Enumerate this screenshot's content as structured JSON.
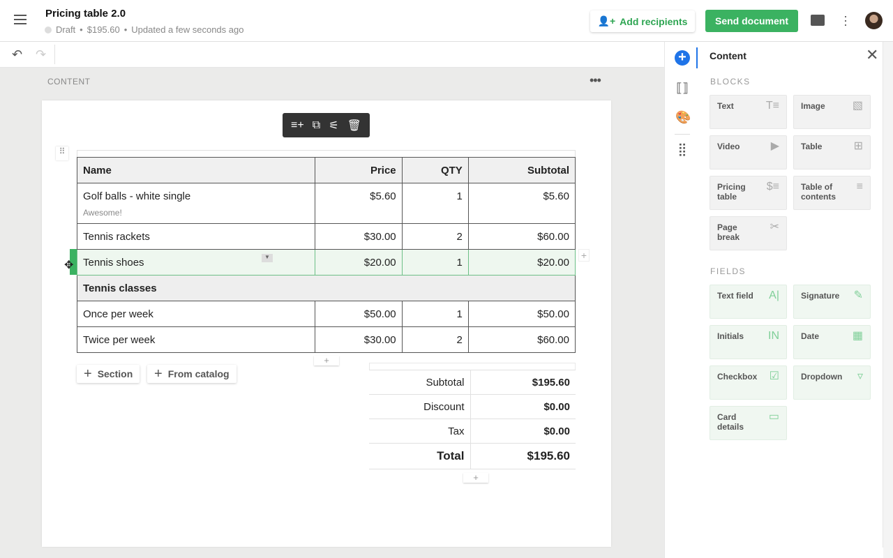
{
  "header": {
    "title": "Pricing table 2.0",
    "status": "Draft",
    "amount": "$195.60",
    "updated": "Updated a few seconds ago",
    "add_recipients": "Add recipients",
    "send": "Send document"
  },
  "canvas": {
    "label": "CONTENT"
  },
  "table": {
    "headers": [
      "Name",
      "Price",
      "QTY",
      "Subtotal"
    ],
    "rows": [
      {
        "type": "item",
        "name": "Golf balls - white single",
        "note": "Awesome!",
        "price": "$5.60",
        "qty": "1",
        "subtotal": "$5.60"
      },
      {
        "type": "item",
        "name": "Tennis rackets",
        "price": "$30.00",
        "qty": "2",
        "subtotal": "$60.00"
      },
      {
        "type": "item",
        "selected": true,
        "name": "Tennis shoes",
        "price": "$20.00",
        "qty": "1",
        "subtotal": "$20.00"
      },
      {
        "type": "section",
        "name": "Tennis classes"
      },
      {
        "type": "item",
        "name": "Once per week",
        "price": "$50.00",
        "qty": "1",
        "subtotal": "$50.00"
      },
      {
        "type": "item",
        "name": "Twice per week",
        "price": "$30.00",
        "qty": "2",
        "subtotal": "$60.00"
      }
    ]
  },
  "actions": {
    "section": "Section",
    "catalog": "From catalog"
  },
  "summary": [
    {
      "label": "Subtotal",
      "value": "$195.60"
    },
    {
      "label": "Discount",
      "value": "$0.00"
    },
    {
      "label": "Tax",
      "value": "$0.00"
    },
    {
      "label": "Total",
      "value": "$195.60"
    }
  ],
  "panel": {
    "title": "Content",
    "blocks_heading": "BLOCKS",
    "fields_heading": "FIELDS",
    "blocks": [
      {
        "label": "Text",
        "icon": "text-icon",
        "glyph": "T≡"
      },
      {
        "label": "Image",
        "icon": "image-icon",
        "glyph": "▧"
      },
      {
        "label": "Video",
        "icon": "video-icon",
        "glyph": "▶"
      },
      {
        "label": "Table",
        "icon": "table-icon",
        "glyph": "⊞"
      },
      {
        "label": "Pricing table",
        "icon": "pricing-table-icon",
        "glyph": "$≡"
      },
      {
        "label": "Table of contents",
        "icon": "toc-icon",
        "glyph": "≡"
      },
      {
        "label": "Page break",
        "icon": "scissors-icon",
        "glyph": "✂"
      }
    ],
    "fields": [
      {
        "label": "Text field",
        "icon": "text-field-icon",
        "glyph": "A|"
      },
      {
        "label": "Signature",
        "icon": "signature-icon",
        "glyph": "✎"
      },
      {
        "label": "Initials",
        "icon": "initials-icon",
        "glyph": "IN"
      },
      {
        "label": "Date",
        "icon": "calendar-icon",
        "glyph": "▦"
      },
      {
        "label": "Checkbox",
        "icon": "checkbox-icon",
        "glyph": "☑"
      },
      {
        "label": "Dropdown",
        "icon": "dropdown-icon",
        "glyph": "▿"
      },
      {
        "label": "Card details",
        "icon": "card-icon",
        "glyph": "▭"
      }
    ]
  },
  "colors": {
    "accent": "#3bb261",
    "blue": "#1f74e8"
  }
}
